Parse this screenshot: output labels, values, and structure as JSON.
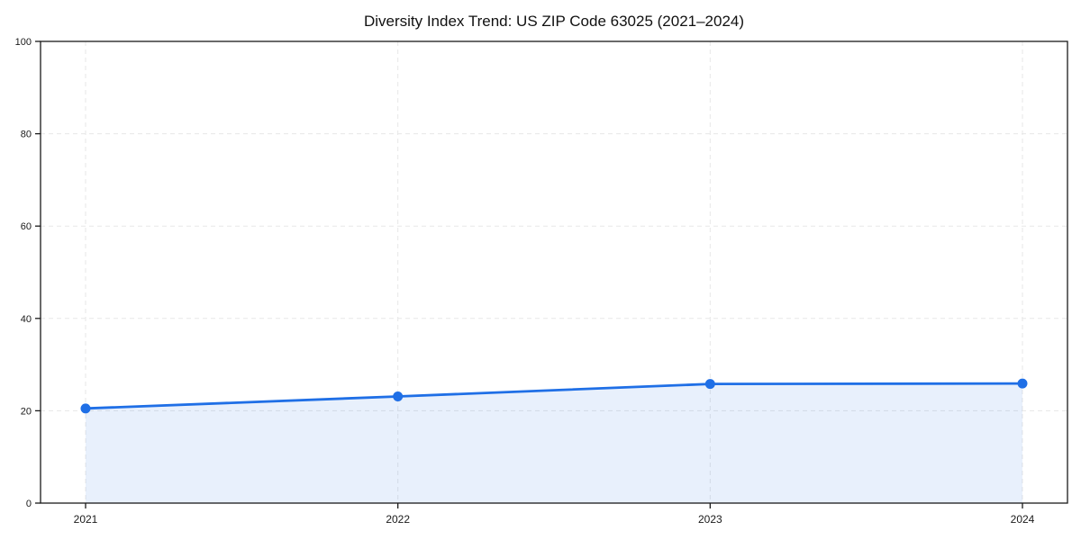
{
  "chart_data": {
    "type": "line",
    "title": "Diversity Index Trend: US ZIP Code 63025 (2021–2024)",
    "categories": [
      "2021",
      "2022",
      "2023",
      "2024"
    ],
    "series": [
      {
        "name": "Diversity Index",
        "values": [
          20.5,
          23.1,
          25.8,
          25.9
        ]
      }
    ],
    "xlabel": "",
    "ylabel": "",
    "ylim": [
      0,
      100
    ],
    "y_ticks": [
      0,
      20,
      40,
      60,
      80,
      100
    ],
    "grid": true,
    "grid_style": "dashed",
    "legend_position": "none",
    "marker": "circle",
    "area_fill": true,
    "colors": {
      "line": "#1f6fe6",
      "marker": "#1f6fe6",
      "area_fill": "rgba(31, 111, 230, 0.10)",
      "grid": "#e7e7e7",
      "axis": "#1a1a1a",
      "tick_label": "#1a1a1a",
      "title": "#111111",
      "background": "#ffffff"
    }
  }
}
